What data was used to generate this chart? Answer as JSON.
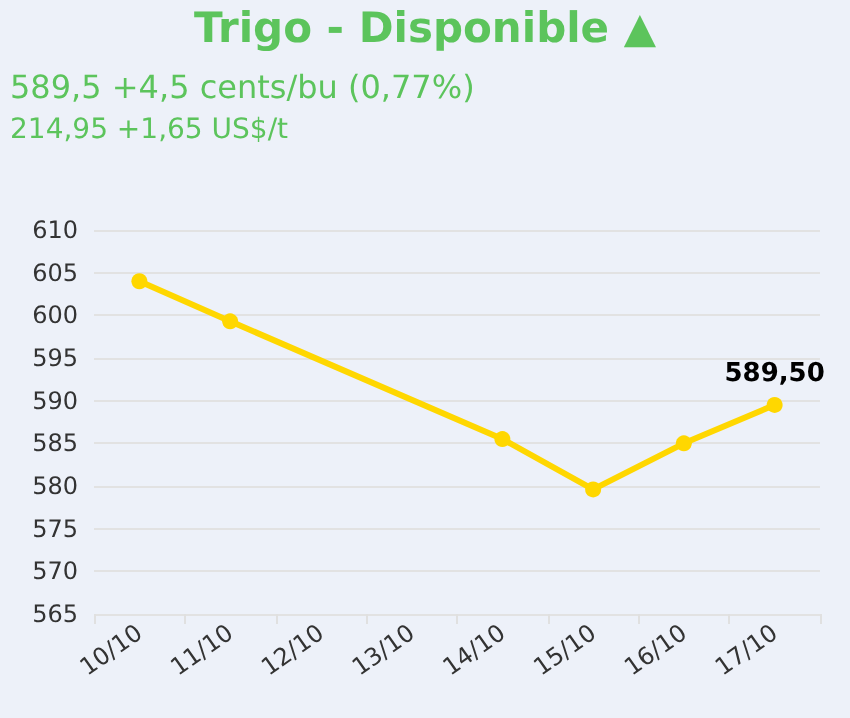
{
  "chart_data": {
    "type": "line",
    "title": "Trigo - Disponible ▲",
    "subtitle": "589,5 +4,5 cents/bu (0,77%)",
    "annotations": [
      "214,95 +1,65 US$/t"
    ],
    "categories": [
      "10/10",
      "11/10",
      "12/10",
      "13/10",
      "14/10",
      "15/10",
      "16/10",
      "17/10"
    ],
    "series": [
      {
        "color": "#ffd700",
        "values": [
          604,
          599.3,
          null,
          null,
          585.5,
          579.6,
          585,
          589.5
        ],
        "value_labels": [
          null,
          null,
          null,
          null,
          null,
          null,
          null,
          "589,50"
        ]
      }
    ],
    "ylim": [
      565,
      610
    ],
    "yticks": [
      565,
      570,
      575,
      580,
      585,
      590,
      595,
      600,
      605,
      610
    ],
    "grid": "y",
    "marker": "circle",
    "line_style": "solid"
  }
}
